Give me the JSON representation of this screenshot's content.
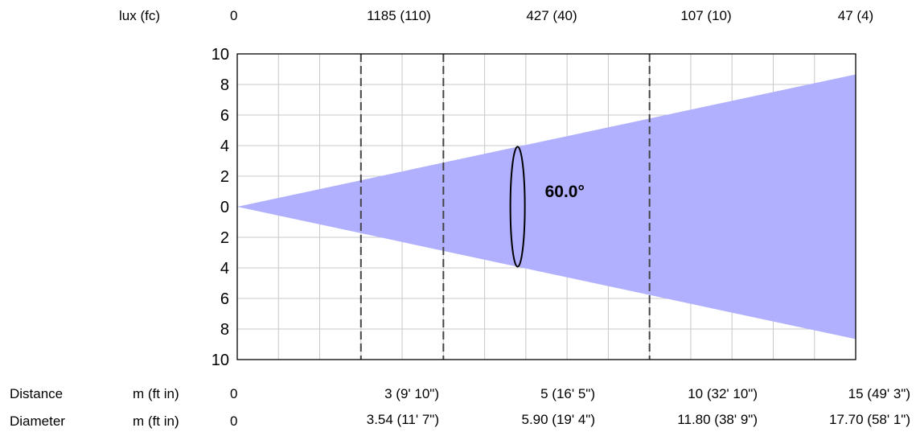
{
  "header": {
    "lux_label": "lux (fc)",
    "lux_values": [
      "0",
      "1185 (110)",
      "427 (40)",
      "107 (10)",
      "47 (4)"
    ]
  },
  "footer": {
    "distance_label": "Distance",
    "distance_unit": "m (ft in)",
    "distance_values": [
      "0",
      "3 (9' 10\")",
      "5 (16' 5\")",
      "10 (32' 10\")",
      "15 (49' 3\")"
    ],
    "diameter_label": "Diameter",
    "diameter_unit": "m (ft in)",
    "diameter_values": [
      "0",
      "3.54 (11' 7\")",
      "5.90 (19' 4\")",
      "11.80 (38' 9\")",
      "17.70 (58' 1\")"
    ]
  },
  "chart_data": {
    "type": "area",
    "beam_angle_label": "60.0°",
    "beam_half_angle_deg": 30,
    "x_range": [
      0,
      15
    ],
    "ylim": [
      -10,
      10
    ],
    "y_tick_values": [
      10,
      8,
      6,
      4,
      2,
      0,
      -2,
      -4,
      -6,
      -8,
      -10
    ],
    "y_tick_labels": [
      "10",
      "8",
      "6",
      "4",
      "2",
      "0",
      "2",
      "4",
      "6",
      "8",
      "10"
    ],
    "grid": true,
    "dashed_distance_markers": [
      3,
      5,
      10
    ],
    "angle_marker_distance": 6.8,
    "beam_color": "#b0b0ff"
  }
}
